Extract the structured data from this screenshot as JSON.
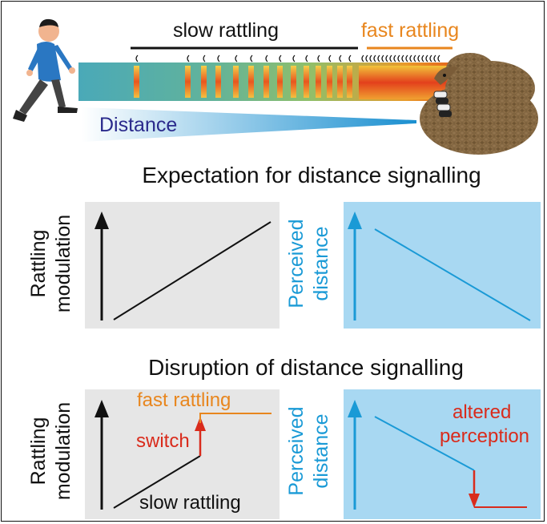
{
  "header": {
    "slow_label": "slow rattling",
    "fast_label": "fast rattling",
    "distance_label": "Distance"
  },
  "expectation": {
    "title": "Expectation for distance signalling",
    "left_ylabel_line1": "Rattling",
    "left_ylabel_line2": "modulation",
    "right_ylabel_line1": "Perceived",
    "right_ylabel_line2": "distance"
  },
  "disruption": {
    "title": "Disruption of distance signalling",
    "left_ylabel_line1": "Rattling",
    "left_ylabel_line2": "modulation",
    "right_ylabel_line1": "Perceived",
    "right_ylabel_line2": "distance",
    "fast_label": "fast rattling",
    "switch_label": "switch",
    "slow_label": "slow rattling",
    "altered_line1": "altered",
    "altered_line2": "perception"
  },
  "colors": {
    "black": "#111111",
    "blue": "#1a9ad6",
    "orange": "#e8861e",
    "red": "#d92b1c",
    "panel_gray": "#e6e6e6",
    "panel_blue": "#a8d8f2",
    "navy": "#2a2a8c"
  }
}
